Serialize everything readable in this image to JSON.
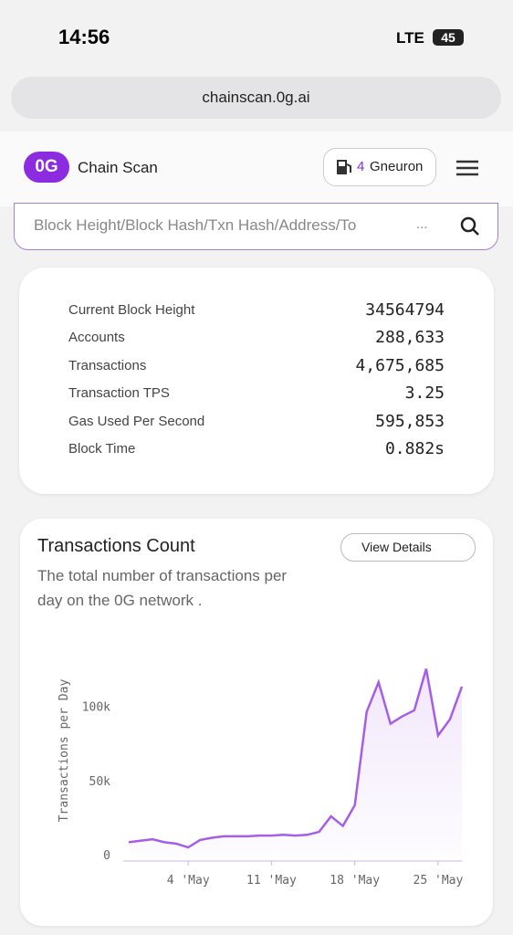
{
  "status_bar": {
    "time": "14:56",
    "network": "LTE",
    "battery": "45"
  },
  "browser": {
    "url": "chainscan.0g.ai"
  },
  "header": {
    "logo": "0G",
    "brand": "Chain Scan",
    "gas_value": "4",
    "gas_unit": "Gneuron"
  },
  "search": {
    "placeholder": "Block Height/Block Hash/Txn Hash/Address/To",
    "more": "..."
  },
  "stats": {
    "rows": [
      [
        "Current Block Height",
        "34564794"
      ],
      [
        "Accounts",
        "288,633"
      ],
      [
        "Transactions",
        "4,675,685"
      ],
      [
        "Transaction TPS",
        "3.25"
      ],
      [
        "Gas Used Per Second",
        "595,853"
      ],
      [
        "Block Time",
        "0.882s"
      ]
    ]
  },
  "chart_data": {
    "type": "line",
    "title": "Transactions Count",
    "subtitle": "The total number of transactions per day on the 0G network .",
    "button": "View Details",
    "y_label": "Transactions per Day",
    "categories": [
      null,
      null,
      null,
      null,
      null,
      "4 'May",
      null,
      null,
      null,
      null,
      null,
      null,
      "11 'May",
      null,
      null,
      null,
      null,
      null,
      null,
      "18 'May",
      null,
      null,
      null,
      null,
      null,
      null,
      "25 'May",
      null,
      null
    ],
    "series": [
      {
        "name": "Transactions",
        "color": "#a55ee6",
        "values": [
          9000,
          10000,
          11000,
          9000,
          8000,
          5500,
          10500,
          12000,
          13000,
          13000,
          13000,
          13500,
          13500,
          14000,
          13500,
          14000,
          16000,
          26500,
          20000,
          34000,
          97000,
          117000,
          89000,
          94000,
          98000,
          126000,
          81000,
          92000,
          114000
        ]
      }
    ],
    "ylim": [
      0,
      130000
    ],
    "yticks": [
      0,
      {
        "value": 50000,
        "label": "50k"
      },
      {
        "value": 100000,
        "label": "100k"
      }
    ]
  }
}
